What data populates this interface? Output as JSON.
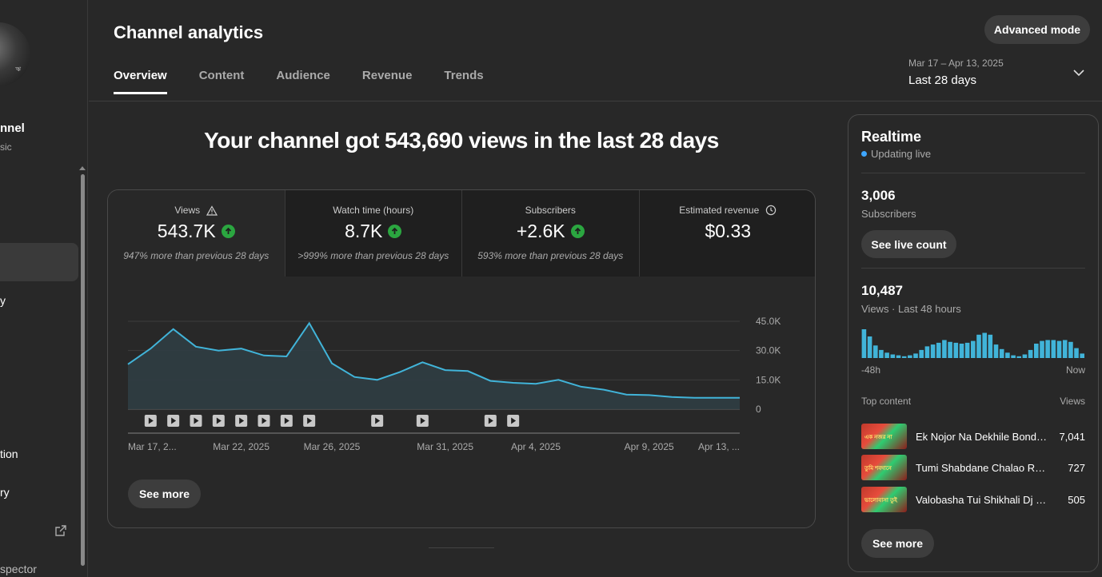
{
  "sidebar": {
    "channel_name": "nnel",
    "channel_sub": "sic",
    "avatar_tag": "ঋ",
    "nav_item_1": "y",
    "nav_item_2": "tion",
    "nav_item_3": "ry",
    "bottom_item": "spector"
  },
  "header": {
    "title": "Channel analytics",
    "advanced_mode": "Advanced mode",
    "tabs": [
      "Overview",
      "Content",
      "Audience",
      "Revenue",
      "Trends"
    ],
    "date_range_sub": "Mar 17 – Apr 13, 2025",
    "date_range_main": "Last 28 days"
  },
  "headline": "Your channel got 543,690 views in the last 28 days",
  "metrics": [
    {
      "label": "Views",
      "value": "543.7K",
      "note": "947% more than previous 28 days"
    },
    {
      "label": "Watch time (hours)",
      "value": "8.7K",
      "note": ">999% more than previous 28 days"
    },
    {
      "label": "Subscribers",
      "value": "+2.6K",
      "note": "593% more than previous 28 days"
    },
    {
      "label": "Estimated revenue",
      "value": "$0.33",
      "note": ""
    }
  ],
  "chart_data": {
    "type": "area",
    "title": "",
    "xlabel": "",
    "ylabel": "",
    "x_ticks": [
      "Mar 17, 2...",
      "Mar 22, 2025",
      "Mar 26, 2025",
      "Mar 31, 2025",
      "Apr 4, 2025",
      "Apr 9, 2025",
      "Apr 13, ..."
    ],
    "y_ticks": [
      "45.0K",
      "30.0K",
      "15.0K",
      "0"
    ],
    "ylim": [
      0,
      45000
    ],
    "grid": true,
    "x": [
      "Mar 17",
      "Mar 18",
      "Mar 19",
      "Mar 20",
      "Mar 21",
      "Mar 22",
      "Mar 23",
      "Mar 24",
      "Mar 25",
      "Mar 26",
      "Mar 27",
      "Mar 28",
      "Mar 29",
      "Mar 30",
      "Mar 31",
      "Apr 1",
      "Apr 2",
      "Apr 3",
      "Apr 4",
      "Apr 5",
      "Apr 6",
      "Apr 7",
      "Apr 8",
      "Apr 9",
      "Apr 10",
      "Apr 11",
      "Apr 12",
      "Apr 13"
    ],
    "values": [
      23000,
      31000,
      41000,
      32000,
      30000,
      31000,
      27500,
      27000,
      44000,
      23500,
      16500,
      15000,
      19000,
      24000,
      20000,
      19500,
      14500,
      13500,
      13000,
      15000,
      11500,
      10000,
      7500,
      7200,
      6200,
      5800,
      5800,
      5800
    ],
    "video_markers": [
      "Mar 18",
      "Mar 19",
      "Mar 20",
      "Mar 21",
      "Mar 22",
      "Mar 23",
      "Mar 24",
      "Mar 25",
      "Mar 28",
      "Mar 30",
      "Apr 2",
      "Apr 3"
    ],
    "color": "#41b4d9"
  },
  "see_more_label": "See more",
  "realtime": {
    "title": "Realtime",
    "status": "Updating live",
    "subscribers_value": "3,006",
    "subscribers_label": "Subscribers",
    "live_count_btn": "See live count",
    "views_value": "10,487",
    "views_label": "Views · Last 48 hours",
    "axis_left": "-48h",
    "axis_right": "Now",
    "hourly_views": [
      32,
      24,
      14,
      9,
      6,
      4,
      3,
      2,
      3,
      5,
      9,
      13,
      15,
      17,
      20,
      18,
      17,
      16,
      17,
      19,
      26,
      28,
      26,
      15,
      10,
      6,
      3,
      2,
      4,
      9,
      16,
      19,
      20,
      20,
      19,
      20,
      18,
      11,
      5
    ],
    "top_content_label": "Top content",
    "views_col_label": "Views",
    "top_content": [
      {
        "title": "Ek Nojor Na Dekhile Bond…",
        "views": "7,041",
        "thumb_text": "এক নজর না"
      },
      {
        "title": "Tumi Shabdane Chalao Re …",
        "views": "727",
        "thumb_text": "তুমি শবদানে"
      },
      {
        "title": "Valobasha Tui Shikhali Dj | …",
        "views": "505",
        "thumb_text": "ভালোবাসা তুই"
      }
    ],
    "see_more": "See more"
  }
}
